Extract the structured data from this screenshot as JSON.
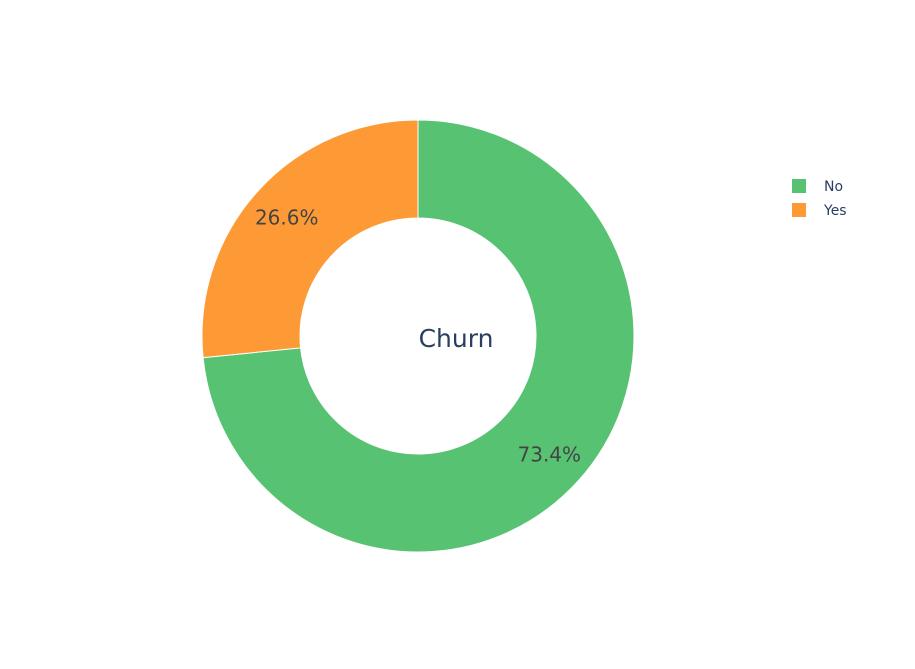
{
  "chart_data": {
    "type": "pie",
    "hole": true,
    "center_text": "Churn",
    "slices": [
      {
        "label": "No",
        "percent": 73.4,
        "display": "73.4%",
        "color": "#58c273"
      },
      {
        "label": "Yes",
        "percent": 26.6,
        "display": "26.6%",
        "color": "#fd9a35"
      }
    ],
    "legend": {
      "placement": "right",
      "entries": [
        "No",
        "Yes"
      ]
    }
  }
}
